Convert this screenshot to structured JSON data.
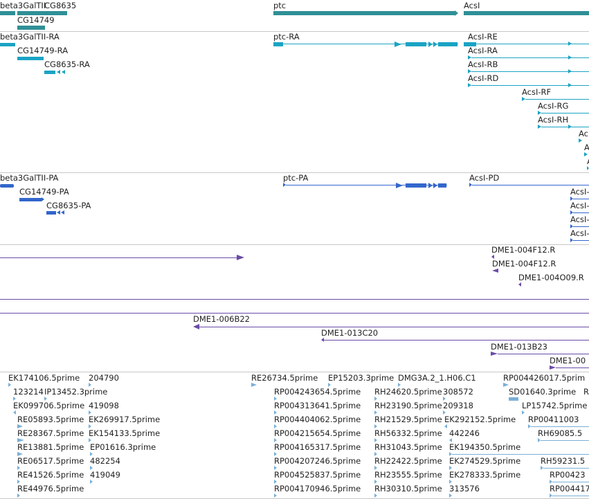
{
  "colors": {
    "gene": "#2f8f96",
    "transcript": "#1aa3c4",
    "protein": "#3366cc",
    "clone": "#6a4ba8",
    "est": "#7ab0d8",
    "divider": "#c8c8c8"
  },
  "tracks": [
    {
      "name": "gene-track",
      "features": [
        {
          "label": "beta3GalTII"
        },
        {
          "label": "CG8635"
        },
        {
          "label": "CG14749"
        },
        {
          "label": "ptc"
        },
        {
          "label": "AcsI"
        }
      ]
    },
    {
      "name": "transcript-track",
      "features": [
        {
          "label": "beta3GalTII-RA"
        },
        {
          "label": "CG14749-RA"
        },
        {
          "label": "CG8635-RA"
        },
        {
          "label": "ptc-RA"
        },
        {
          "label": "AcsI-RE"
        },
        {
          "label": "AcsI-RA"
        },
        {
          "label": "AcsI-RB"
        },
        {
          "label": "AcsI-RD"
        },
        {
          "label": "AcsI-RF"
        },
        {
          "label": "AcsI-RG"
        },
        {
          "label": "AcsI-RH"
        },
        {
          "label": "Ac"
        },
        {
          "label": "A"
        },
        {
          "label": "A"
        }
      ]
    },
    {
      "name": "protein-track",
      "features": [
        {
          "label": "beta3GalTII-PA"
        },
        {
          "label": "CG14749-PA"
        },
        {
          "label": "CG8635-PA"
        },
        {
          "label": "ptc-PA"
        },
        {
          "label": "AcsI-PD"
        },
        {
          "label": "AcsI-"
        },
        {
          "label": "AcsI-"
        },
        {
          "label": "AcsI-"
        },
        {
          "label": "AcsI-"
        }
      ]
    },
    {
      "name": "clone-track",
      "features": [
        {
          "label": "DME1-004F12.R"
        },
        {
          "label": "DME1-004F12.R"
        },
        {
          "label": "DME1-004O09.R"
        },
        {
          "label": "DME1-006B22"
        },
        {
          "label": "DME1-013C20"
        },
        {
          "label": "DME1-013B23"
        },
        {
          "label": "DME1-00"
        }
      ]
    },
    {
      "name": "est-track",
      "features": [
        {
          "label": "EK174106.5prime"
        },
        {
          "label": "204790"
        },
        {
          "label": "RE26734.5prime"
        },
        {
          "label": "EP15203.3prime"
        },
        {
          "label": "DMG3A.2_1.H06.C1"
        },
        {
          "label": "RP004426017.5prim"
        },
        {
          "label": "123214"
        },
        {
          "label": "IP13452.3prime"
        },
        {
          "label": "RP004243654.5prime"
        },
        {
          "label": "RH24620.5prime"
        },
        {
          "label": "308572"
        },
        {
          "label": "SD01640.3prime"
        },
        {
          "label": "R"
        },
        {
          "label": "EK099706.5prime"
        },
        {
          "label": "419098"
        },
        {
          "label": "RP004313641.5prime"
        },
        {
          "label": "RH23190.5prime"
        },
        {
          "label": "209318"
        },
        {
          "label": "LP15742.5prime"
        },
        {
          "label": "RE05893.5prime"
        },
        {
          "label": "EK269917.5prime"
        },
        {
          "label": "RP004404062.5prime"
        },
        {
          "label": "RH21529.5prime"
        },
        {
          "label": "EK292152.5prime"
        },
        {
          "label": "RP00411003"
        },
        {
          "label": "RE28367.5prime"
        },
        {
          "label": "EK154133.5prime"
        },
        {
          "label": "RP004215654.5prime"
        },
        {
          "label": "RH56332.5prime"
        },
        {
          "label": "442246"
        },
        {
          "label": "RH69085.5"
        },
        {
          "label": "RE13881.5prime"
        },
        {
          "label": "EP01616.3prime"
        },
        {
          "label": "RP004165317.5prime"
        },
        {
          "label": "RH31043.5prime"
        },
        {
          "label": "EK194350.5prime"
        },
        {
          "label": "RE06517.5prime"
        },
        {
          "label": "482254"
        },
        {
          "label": "RP004207246.5prime"
        },
        {
          "label": "RH22422.5prime"
        },
        {
          "label": "EK274529.5prime"
        },
        {
          "label": "RH59231.5"
        },
        {
          "label": "RE41526.5prime"
        },
        {
          "label": "419049"
        },
        {
          "label": "RP004525837.5prime"
        },
        {
          "label": "RH23555.5prime"
        },
        {
          "label": "EK278333.5prime"
        },
        {
          "label": "RP00423"
        },
        {
          "label": "RE44976.5prime"
        },
        {
          "label": "RP004170946.5prime"
        },
        {
          "label": "RH30310.5prime"
        },
        {
          "label": "313576"
        },
        {
          "label": "RP004417"
        }
      ]
    }
  ]
}
